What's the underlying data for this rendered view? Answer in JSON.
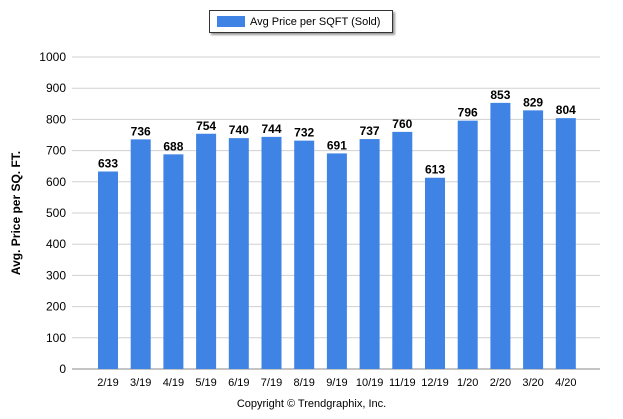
{
  "chart_data": {
    "type": "bar",
    "categories": [
      "2/19",
      "3/19",
      "4/19",
      "5/19",
      "6/19",
      "7/19",
      "8/19",
      "9/19",
      "10/19",
      "11/19",
      "12/19",
      "1/20",
      "2/20",
      "3/20",
      "4/20"
    ],
    "series": [
      {
        "name": "Avg Price per SQFT (Sold)",
        "values": [
          633,
          736,
          688,
          754,
          740,
          744,
          732,
          691,
          737,
          760,
          613,
          796,
          853,
          829,
          804
        ],
        "color": "#3f84e5"
      }
    ],
    "ylabel": "Avg. Price per SQ. FT.",
    "xlabel": "",
    "ylim": [
      0,
      1000
    ],
    "yticks": [
      "0",
      "100",
      "200",
      "300",
      "400",
      "500",
      "600",
      "700",
      "800",
      "900",
      "1000"
    ],
    "grid": true,
    "legend_position": "top-center",
    "data_labels": true
  },
  "legend": {
    "label": "Avg Price per SQFT (Sold)"
  },
  "footer": {
    "copyright": "Copyright © Trendgraphix, Inc."
  }
}
